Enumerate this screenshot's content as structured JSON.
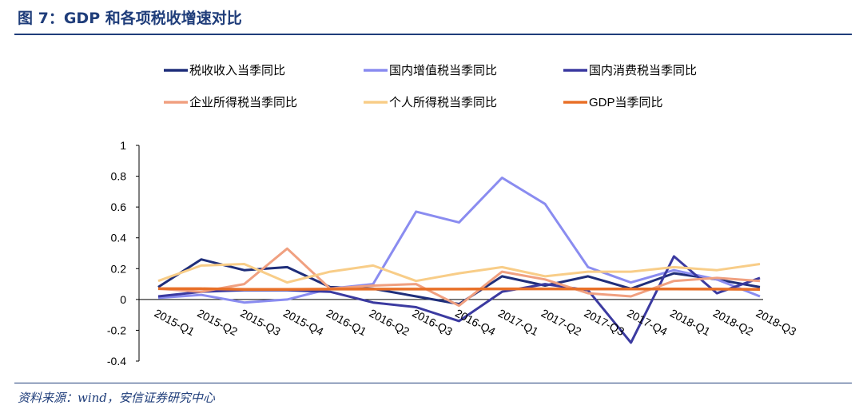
{
  "header": {
    "title": "图 7：GDP 和各项税收增速对比"
  },
  "footer": {
    "source": "资料来源：wind，安信证券研究中心"
  },
  "chart_data": {
    "type": "line",
    "categories": [
      "2015-Q1",
      "2015-Q2",
      "2015-Q3",
      "2015-Q4",
      "2016-Q1",
      "2016-Q2",
      "2016-Q3",
      "2016-Q4",
      "2017-Q1",
      "2017-Q2",
      "2017-Q3",
      "2017-Q4",
      "2018-Q1",
      "2018-Q2",
      "2018-Q3"
    ],
    "ylim": [
      -0.4,
      1
    ],
    "yticks": [
      "1",
      "0.8",
      "0.6",
      "0.4",
      "0.2",
      "0",
      "-0.2",
      "-0.4"
    ],
    "ytick_values": [
      1,
      0.8,
      0.6,
      0.4,
      0.2,
      0,
      -0.2,
      -0.4
    ],
    "grid": false,
    "legend_position": "top",
    "series": [
      {
        "name": "税收收入当季同比",
        "color": "#1f2e7a",
        "values": [
          0.08,
          0.26,
          0.19,
          0.21,
          0.08,
          0.07,
          0.02,
          -0.03,
          0.15,
          0.09,
          0.15,
          0.07,
          0.17,
          0.13,
          0.08
        ]
      },
      {
        "name": "国内增值税当季同比",
        "color": "#8a8cf0",
        "values": [
          0.01,
          0.03,
          -0.02,
          0.0,
          0.07,
          0.1,
          0.57,
          0.5,
          0.79,
          0.62,
          0.21,
          0.11,
          0.19,
          0.13,
          0.02
        ]
      },
      {
        "name": "国内消费税当季同比",
        "color": "#3b3aa0",
        "values": [
          0.02,
          0.05,
          0.06,
          0.06,
          0.05,
          -0.02,
          -0.05,
          -0.14,
          0.05,
          0.1,
          0.06,
          -0.28,
          0.28,
          0.04,
          0.14
        ]
      },
      {
        "name": "企业所得税当季同比",
        "color": "#f0a080",
        "values": [
          0.07,
          0.05,
          0.1,
          0.33,
          0.07,
          0.09,
          0.1,
          -0.04,
          0.18,
          0.13,
          0.04,
          0.02,
          0.12,
          0.14,
          0.12
        ]
      },
      {
        "name": "个人所得税当季同比",
        "color": "#f8cd88",
        "values": [
          0.12,
          0.22,
          0.23,
          0.11,
          0.18,
          0.22,
          0.12,
          0.17,
          0.21,
          0.15,
          0.18,
          0.18,
          0.21,
          0.19,
          0.23
        ]
      },
      {
        "name": "GDP当季同比",
        "color": "#e87028",
        "values": [
          0.07,
          0.07,
          0.065,
          0.065,
          0.067,
          0.067,
          0.067,
          0.067,
          0.069,
          0.069,
          0.068,
          0.068,
          0.068,
          0.067,
          0.065
        ]
      }
    ]
  }
}
